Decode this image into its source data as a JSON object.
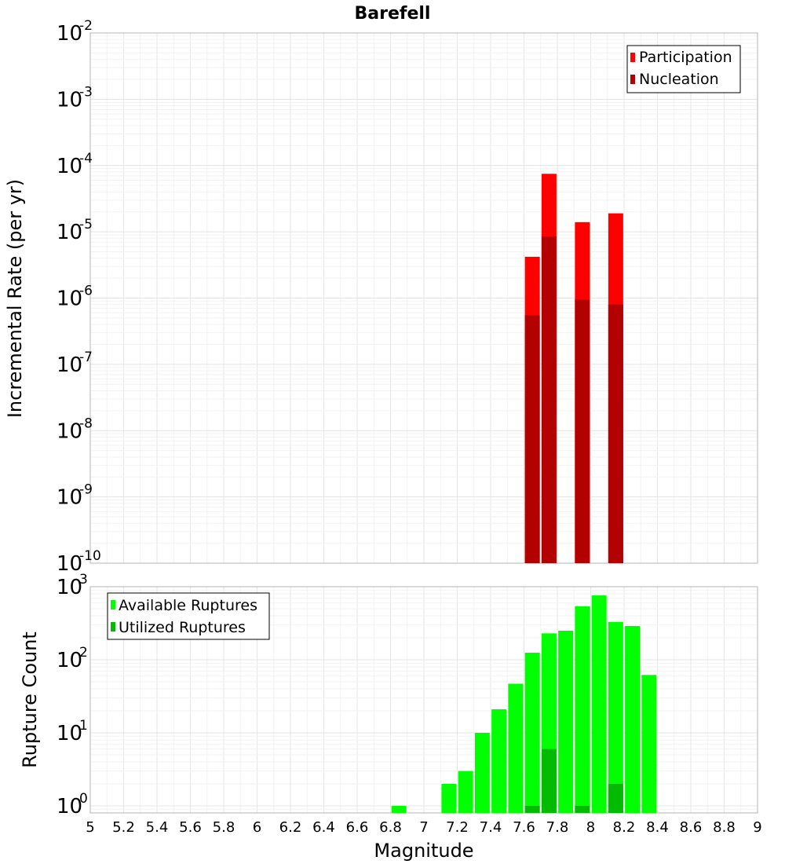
{
  "chart_data": [
    {
      "type": "bar",
      "title": "Barefell",
      "xlabel": "",
      "ylabel": "Incremental Rate (per yr)",
      "yscale": "log",
      "xlim": [
        5,
        9
      ],
      "ylim": [
        1e-10,
        0.01
      ],
      "y_ticks": [
        {
          "base": "10",
          "exp": "-10"
        },
        {
          "base": "10",
          "exp": "-9"
        },
        {
          "base": "10",
          "exp": "-8"
        },
        {
          "base": "10",
          "exp": "-7"
        },
        {
          "base": "10",
          "exp": "-6"
        },
        {
          "base": "10",
          "exp": "-5"
        },
        {
          "base": "10",
          "exp": "-4"
        },
        {
          "base": "10",
          "exp": "-3"
        },
        {
          "base": "10",
          "exp": "-2"
        }
      ],
      "legend_position": "top-right",
      "series": [
        {
          "name": "Participation",
          "color": "#ff0000",
          "x": [
            7.65,
            7.75,
            7.95,
            8.15
          ],
          "values": [
            4.2e-06,
            7.5e-05,
            1.4e-05,
            1.9e-05
          ]
        },
        {
          "name": "Nucleation",
          "color": "#b30000",
          "x": [
            7.65,
            7.75,
            7.95,
            8.15
          ],
          "values": [
            5.5e-07,
            8.5e-06,
            9.5e-07,
            8e-07
          ]
        }
      ]
    },
    {
      "type": "bar",
      "title": "",
      "xlabel": "Magnitude",
      "ylabel": "Rupture Count",
      "yscale": "log",
      "xlim": [
        5,
        9
      ],
      "ylim": [
        0.8,
        1000
      ],
      "x_ticks": [
        "5",
        "5.2",
        "5.4",
        "5.6",
        "5.8",
        "6",
        "6.2",
        "6.4",
        "6.6",
        "6.8",
        "7",
        "7.2",
        "7.4",
        "7.6",
        "7.8",
        "8",
        "8.2",
        "8.4",
        "8.6",
        "8.8",
        "9"
      ],
      "y_ticks": [
        {
          "base": "10",
          "exp": "0"
        },
        {
          "base": "10",
          "exp": "1"
        },
        {
          "base": "10",
          "exp": "2"
        },
        {
          "base": "10",
          "exp": "3"
        }
      ],
      "legend_position": "top-left",
      "series": [
        {
          "name": "Available Ruptures",
          "color": "#00ff00",
          "x": [
            6.85,
            7.15,
            7.25,
            7.35,
            7.45,
            7.55,
            7.65,
            7.75,
            7.85,
            7.95,
            8.05,
            8.15,
            8.25,
            8.35
          ],
          "values": [
            1,
            2,
            3,
            10,
            21,
            47,
            125,
            230,
            250,
            540,
            760,
            330,
            290,
            62
          ]
        },
        {
          "name": "Utilized Ruptures",
          "color": "#00bb00",
          "x": [
            7.65,
            7.75,
            7.95,
            8.15
          ],
          "values": [
            1,
            6,
            1,
            2
          ]
        }
      ]
    }
  ]
}
